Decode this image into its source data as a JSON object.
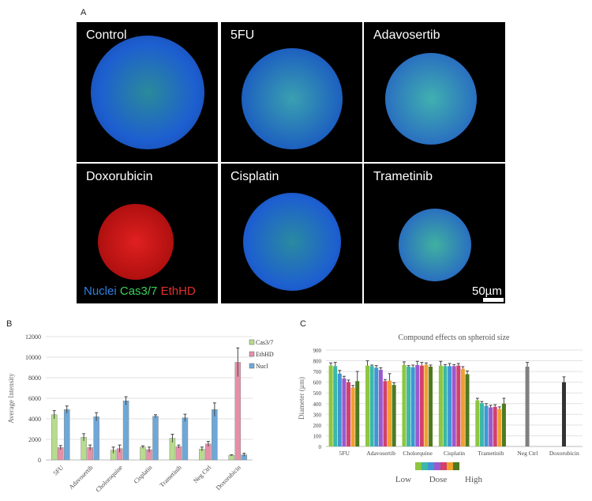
{
  "panel_a": {
    "label": "A",
    "images": [
      "Control",
      "5FU",
      "Adavosertib",
      "Doxorubicin",
      "Cisplatin",
      "Trametinib"
    ],
    "legend": [
      {
        "text": "Nuclei",
        "color": "#2f7fe0"
      },
      {
        "text": "Cas3/7",
        "color": "#3ccf5a"
      },
      {
        "text": "EthHD",
        "color": "#e0302a"
      }
    ],
    "scale_bar": "50µm"
  },
  "chart_data": [
    {
      "panel": "B",
      "type": "bar",
      "title": "",
      "xlabel": "",
      "ylabel": "Average Intensity",
      "ylim": [
        0,
        12000
      ],
      "yticks": [
        0,
        2000,
        4000,
        6000,
        8000,
        10000,
        12000
      ],
      "grid": true,
      "legend": "top-right",
      "categories": [
        "5FU",
        "Adavosertib",
        "Choloroquine",
        "Cisplatin",
        "Trametinib",
        "Neg Ctrl",
        "Doxorubicin"
      ],
      "series": [
        {
          "name": "Cas3/7",
          "color": "#b6dc8c",
          "values": [
            4400,
            2200,
            950,
            1250,
            2100,
            1050,
            450
          ],
          "errors": [
            400,
            350,
            300,
            120,
            400,
            200,
            50
          ]
        },
        {
          "name": "EthHD",
          "color": "#e690a8",
          "values": [
            1200,
            1200,
            1100,
            1000,
            1300,
            1550,
            9500
          ],
          "errors": [
            200,
            250,
            350,
            250,
            150,
            250,
            1400
          ]
        },
        {
          "name": "Nucl",
          "color": "#6ea8d8",
          "values": [
            4900,
            4200,
            5750,
            4250,
            4100,
            4900,
            500
          ],
          "errors": [
            350,
            400,
            400,
            150,
            350,
            650,
            150
          ]
        }
      ]
    },
    {
      "panel": "C",
      "type": "bar",
      "title": "Compound effects on spheroid size",
      "xlabel": "",
      "ylabel": "Diameter (µm)",
      "ylim": [
        0,
        900
      ],
      "yticks": [
        0,
        100,
        200,
        300,
        400,
        500,
        600,
        700,
        800,
        900
      ],
      "grid": true,
      "categories": [
        "5FU",
        "Adavosertib",
        "Cholorquine",
        "Cisplatin",
        "Trametinib",
        "Neg Ctrl",
        "Doxorubicin"
      ],
      "dose_colors": [
        "#8dc63f",
        "#3bb8a8",
        "#3f96d2",
        "#9b59d0",
        "#d2416a",
        "#f0a030",
        "#4d7a20"
      ],
      "dose_legend": {
        "low": "Low",
        "mid": "Dose",
        "high": "High"
      },
      "groups": [
        {
          "values": [
            755,
            750,
            680,
            635,
            600,
            550,
            610
          ],
          "errors": [
            25,
            35,
            30,
            20,
            20,
            20,
            90
          ]
        },
        {
          "values": [
            755,
            750,
            735,
            715,
            610,
            615,
            575
          ],
          "errors": [
            45,
            10,
            20,
            20,
            15,
            65,
            20
          ]
        },
        {
          "values": [
            760,
            745,
            740,
            760,
            755,
            765,
            745
          ],
          "errors": [
            30,
            10,
            20,
            35,
            30,
            15,
            15
          ]
        },
        {
          "values": [
            755,
            750,
            750,
            750,
            755,
            725,
            675
          ],
          "errors": [
            40,
            15,
            25,
            15,
            20,
            20,
            30
          ]
        },
        {
          "values": [
            430,
            405,
            380,
            365,
            370,
            350,
            400
          ],
          "errors": [
            20,
            15,
            20,
            20,
            20,
            20,
            50
          ]
        },
        {
          "values": [
            745
          ],
          "errors": [
            40
          ],
          "color": "#808080"
        },
        {
          "values": [
            600
          ],
          "errors": [
            50
          ],
          "color": "#333333"
        }
      ]
    }
  ]
}
